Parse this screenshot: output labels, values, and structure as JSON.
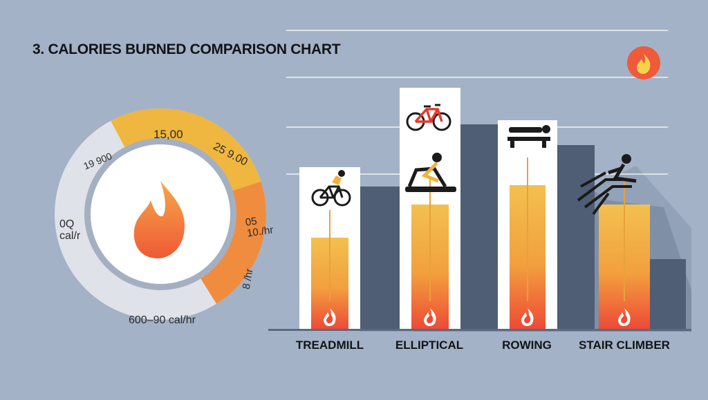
{
  "title": "3. CALORIES BURNED COMPARISON CHART",
  "chart_data": [
    {
      "type": "pie",
      "variant": "donut",
      "segment_labels": [
        "15,00",
        "25 9.00",
        "05 10./hr",
        "8 /hr",
        "600–90 cal/hr",
        "0Q cal/r",
        "19 900"
      ],
      "segment_colors": [
        "#efb640",
        "#efb640",
        "#f08c3d",
        "#f08c3d",
        "#dfe2e8",
        "#dfe2e8",
        "#dfe2e8"
      ],
      "center_icon": "flame-icon"
    },
    {
      "type": "bar",
      "categories": [
        "TREADMILL",
        "ELLIPTICAL",
        "ROWING",
        "STAIR CLIMBER"
      ],
      "values": [
        33,
        45,
        52,
        45
      ],
      "card_heights": [
        76,
        108,
        90,
        0
      ],
      "ylim": [
        0,
        100
      ],
      "icons": [
        "bicycle-icon",
        "bicycle-icon",
        "rowing-machine-icon",
        "stair-climber-icon"
      ],
      "bar_colors": {
        "top": "#f3bd4d",
        "bottom": "#ee4a36"
      },
      "grid": true,
      "gridline_values": [
        56,
        73,
        91,
        108,
        126,
        143
      ]
    }
  ],
  "icons": {
    "badge": "flame-icon"
  }
}
